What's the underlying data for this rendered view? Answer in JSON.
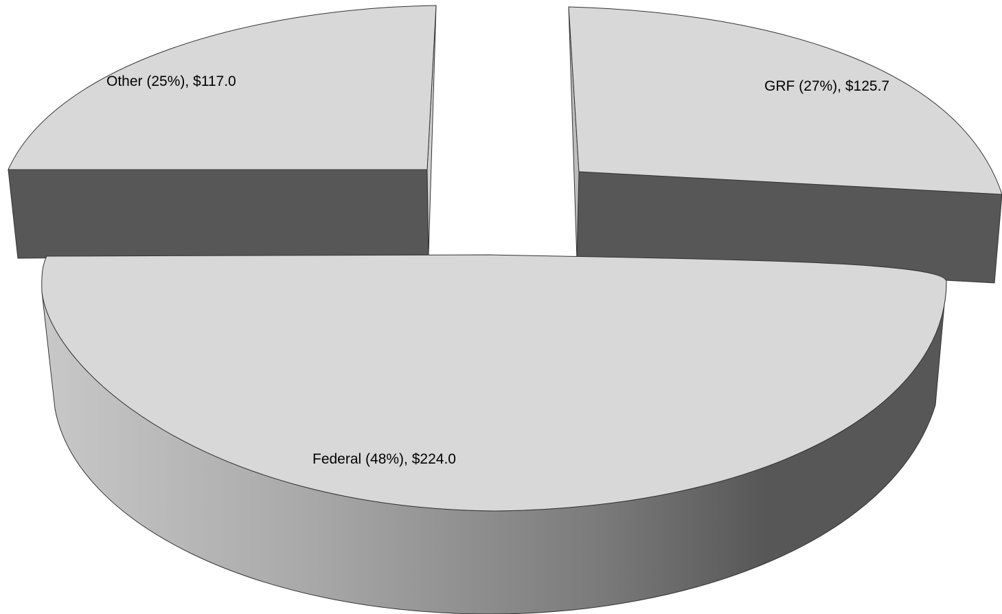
{
  "chart_data": {
    "type": "pie",
    "style": "3d-exploded",
    "slices": [
      {
        "label": "GRF (27%), $125.7",
        "name": "GRF",
        "percent": 27,
        "value": 125.7
      },
      {
        "label": "Federal (48%), $224.0",
        "name": "Federal",
        "percent": 48,
        "value": 224.0
      },
      {
        "label": "Other (25%), $117.0",
        "name": "Other",
        "percent": 25,
        "value": 117.0
      }
    ],
    "colors": {
      "top": "#d8d8d8",
      "side_dark": "#575757",
      "side_light": "#c4c4c4",
      "edge": "#333333"
    },
    "legend": "none"
  }
}
